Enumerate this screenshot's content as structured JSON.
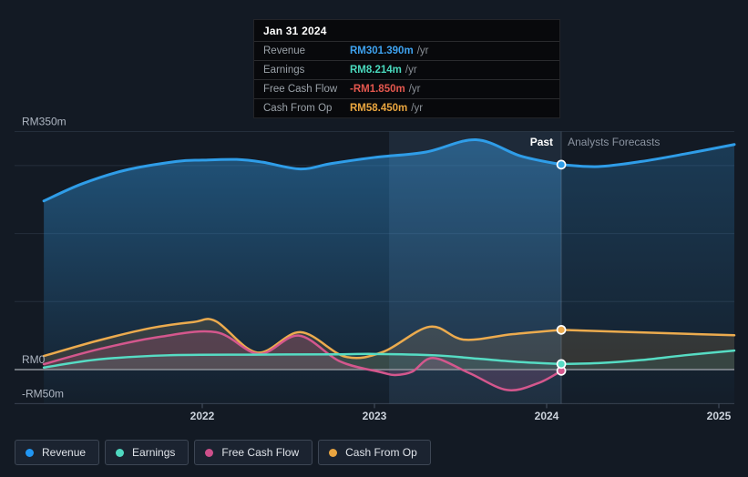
{
  "page": {
    "background": "#131a24"
  },
  "tooltip": {
    "date": "Jan 31 2024",
    "rows": [
      {
        "label": "Revenue",
        "value": "RM301.390m",
        "suffix": "/yr",
        "color": "#3ea2ef"
      },
      {
        "label": "Earnings",
        "value": "RM8.214m",
        "suffix": "/yr",
        "color": "#49d9bd"
      },
      {
        "label": "Free Cash Flow",
        "value": "-RM1.850m",
        "suffix": "/yr",
        "color": "#e4574e"
      },
      {
        "label": "Cash From Op",
        "value": "RM58.450m",
        "suffix": "/yr",
        "color": "#eaa63f"
      }
    ]
  },
  "legend": {
    "items": [
      {
        "label": "Revenue",
        "color": "#2196f3"
      },
      {
        "label": "Earnings",
        "color": "#4fd8c0"
      },
      {
        "label": "Free Cash Flow",
        "color": "#cd4f8a"
      },
      {
        "label": "Cash From Op",
        "color": "#e9a440"
      }
    ]
  },
  "chart_data": {
    "type": "line",
    "unit": "RM millions per year",
    "x_axis": {
      "ticks": [
        2022,
        2023,
        2024,
        2025
      ]
    },
    "y_axis": {
      "labels": [
        {
          "text": "RM350m",
          "value": 350
        },
        {
          "text": "RM0",
          "value": 0
        },
        {
          "text": "-RM50m",
          "value": -50
        }
      ],
      "gridline_values": [
        350,
        300,
        200,
        100
      ],
      "zero_value": 0,
      "bottom_value": -50,
      "range": [
        -50,
        351
      ]
    },
    "annotations": {
      "past_label": "Past",
      "forecast_label": "Analysts Forecasts"
    },
    "split_year": 2024.085,
    "split_date": "Jan 31 2024",
    "highlight_band": {
      "from": 2023.085,
      "to": 2024.085
    },
    "series": [
      {
        "name": "Revenue",
        "color": "#2f9de8",
        "line_width": 3,
        "past": [
          [
            2021.08,
            248
          ],
          [
            2021.3,
            273
          ],
          [
            2021.55,
            293
          ],
          [
            2021.85,
            306
          ],
          [
            2022.0,
            308
          ],
          [
            2022.2,
            309
          ],
          [
            2022.35,
            305
          ],
          [
            2022.57,
            295
          ],
          [
            2022.75,
            303
          ],
          [
            2023.0,
            312
          ],
          [
            2023.3,
            320
          ],
          [
            2023.59,
            338
          ],
          [
            2023.85,
            314
          ],
          [
            2024.085,
            301.39
          ]
        ],
        "forecast": [
          [
            2024.085,
            301.39
          ],
          [
            2024.3,
            298.5
          ],
          [
            2024.55,
            306
          ],
          [
            2024.8,
            317
          ],
          [
            2025.09,
            331
          ]
        ],
        "marker": {
          "year": 2024.085,
          "value": 301.39
        }
      },
      {
        "name": "Cash From Op",
        "color": "#ecab4e",
        "line_width": 2.5,
        "past": [
          [
            2021.08,
            20
          ],
          [
            2021.4,
            43
          ],
          [
            2021.7,
            61
          ],
          [
            2021.95,
            70
          ],
          [
            2022.08,
            71
          ],
          [
            2022.32,
            25
          ],
          [
            2022.57,
            55
          ],
          [
            2022.83,
            19
          ],
          [
            2023.05,
            26
          ],
          [
            2023.32,
            63
          ],
          [
            2023.52,
            44
          ],
          [
            2023.8,
            52
          ],
          [
            2024.085,
            58.45
          ]
        ],
        "forecast": [
          [
            2024.085,
            58.45
          ],
          [
            2024.5,
            55
          ],
          [
            2025.09,
            50.5
          ]
        ],
        "marker": {
          "year": 2024.085,
          "value": 58.45
        }
      },
      {
        "name": "Free Cash Flow",
        "color": "#d4578d",
        "line_width": 2.5,
        "past": [
          [
            2021.08,
            8
          ],
          [
            2021.4,
            30
          ],
          [
            2021.75,
            48
          ],
          [
            2022.08,
            55
          ],
          [
            2022.33,
            23
          ],
          [
            2022.56,
            50
          ],
          [
            2022.8,
            12
          ],
          [
            2023.04,
            -4
          ],
          [
            2023.12,
            -8
          ],
          [
            2023.22,
            -3
          ],
          [
            2023.34,
            17
          ],
          [
            2023.55,
            -5
          ],
          [
            2023.77,
            -30
          ],
          [
            2023.95,
            -20
          ],
          [
            2024.085,
            -1.85
          ]
        ],
        "forecast": [],
        "marker": {
          "year": 2024.085,
          "value": -1.85
        }
      },
      {
        "name": "Earnings",
        "color": "#56dcc4",
        "line_width": 2.5,
        "past": [
          [
            2021.08,
            3
          ],
          [
            2021.4,
            15
          ],
          [
            2021.8,
            21
          ],
          [
            2022.3,
            22
          ],
          [
            2022.8,
            22.5
          ],
          [
            2023.0,
            23
          ],
          [
            2023.35,
            21
          ],
          [
            2023.6,
            16
          ],
          [
            2023.85,
            11
          ],
          [
            2024.085,
            8.214
          ]
        ],
        "forecast": [
          [
            2024.085,
            8.214
          ],
          [
            2024.3,
            9.5
          ],
          [
            2024.55,
            14
          ],
          [
            2024.8,
            21
          ],
          [
            2025.09,
            28
          ]
        ],
        "marker": {
          "year": 2024.085,
          "value": 8.214
        }
      }
    ]
  }
}
